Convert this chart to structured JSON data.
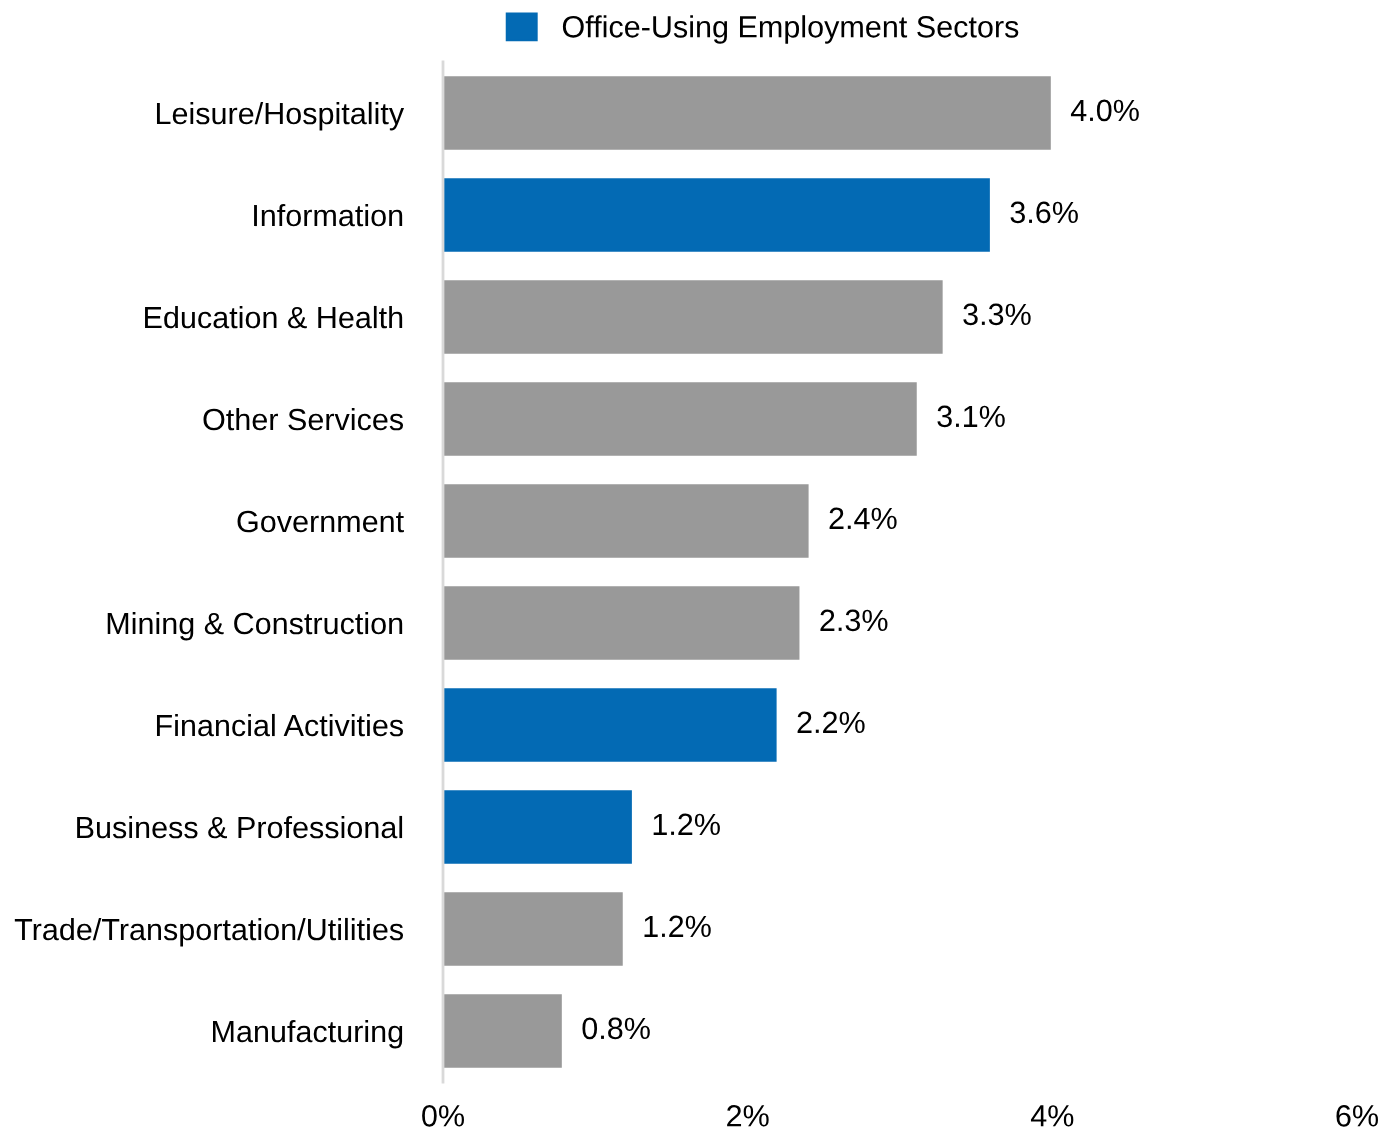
{
  "chart_data": {
    "type": "bar",
    "orientation": "horizontal",
    "categories": [
      "Leisure/Hospitality",
      "Information",
      "Education & Health",
      "Other Services",
      "Government",
      "Mining & Construction",
      "Financial Activities",
      "Business & Professional",
      "Trade/Transportation/Utilities",
      "Manufacturing"
    ],
    "series": [
      {
        "name": "Office-Using Employment Sectors",
        "color": "#036ab4",
        "values": [
          null,
          3.59,
          null,
          null,
          null,
          null,
          2.19,
          1.24,
          null,
          null
        ],
        "value_labels": [
          null,
          "3.6%",
          null,
          null,
          null,
          null,
          "2.2%",
          "1.2%",
          null,
          null
        ]
      },
      {
        "color": "#999999",
        "values": [
          3.99,
          null,
          3.28,
          3.11,
          2.4,
          2.34,
          null,
          null,
          1.18,
          0.78
        ],
        "value_labels": [
          "4.0%",
          null,
          "3.3%",
          "3.1%",
          "2.4%",
          "2.3%",
          null,
          null,
          "1.2%",
          "0.8%"
        ]
      }
    ],
    "xlim": [
      0,
      6
    ],
    "xticks": [
      {
        "value": 0,
        "label": "0%"
      },
      {
        "value": 2,
        "label": "2%"
      },
      {
        "value": 4,
        "label": "4%"
      },
      {
        "value": 6,
        "label": "6%"
      }
    ],
    "grid": false,
    "legend": "top"
  }
}
